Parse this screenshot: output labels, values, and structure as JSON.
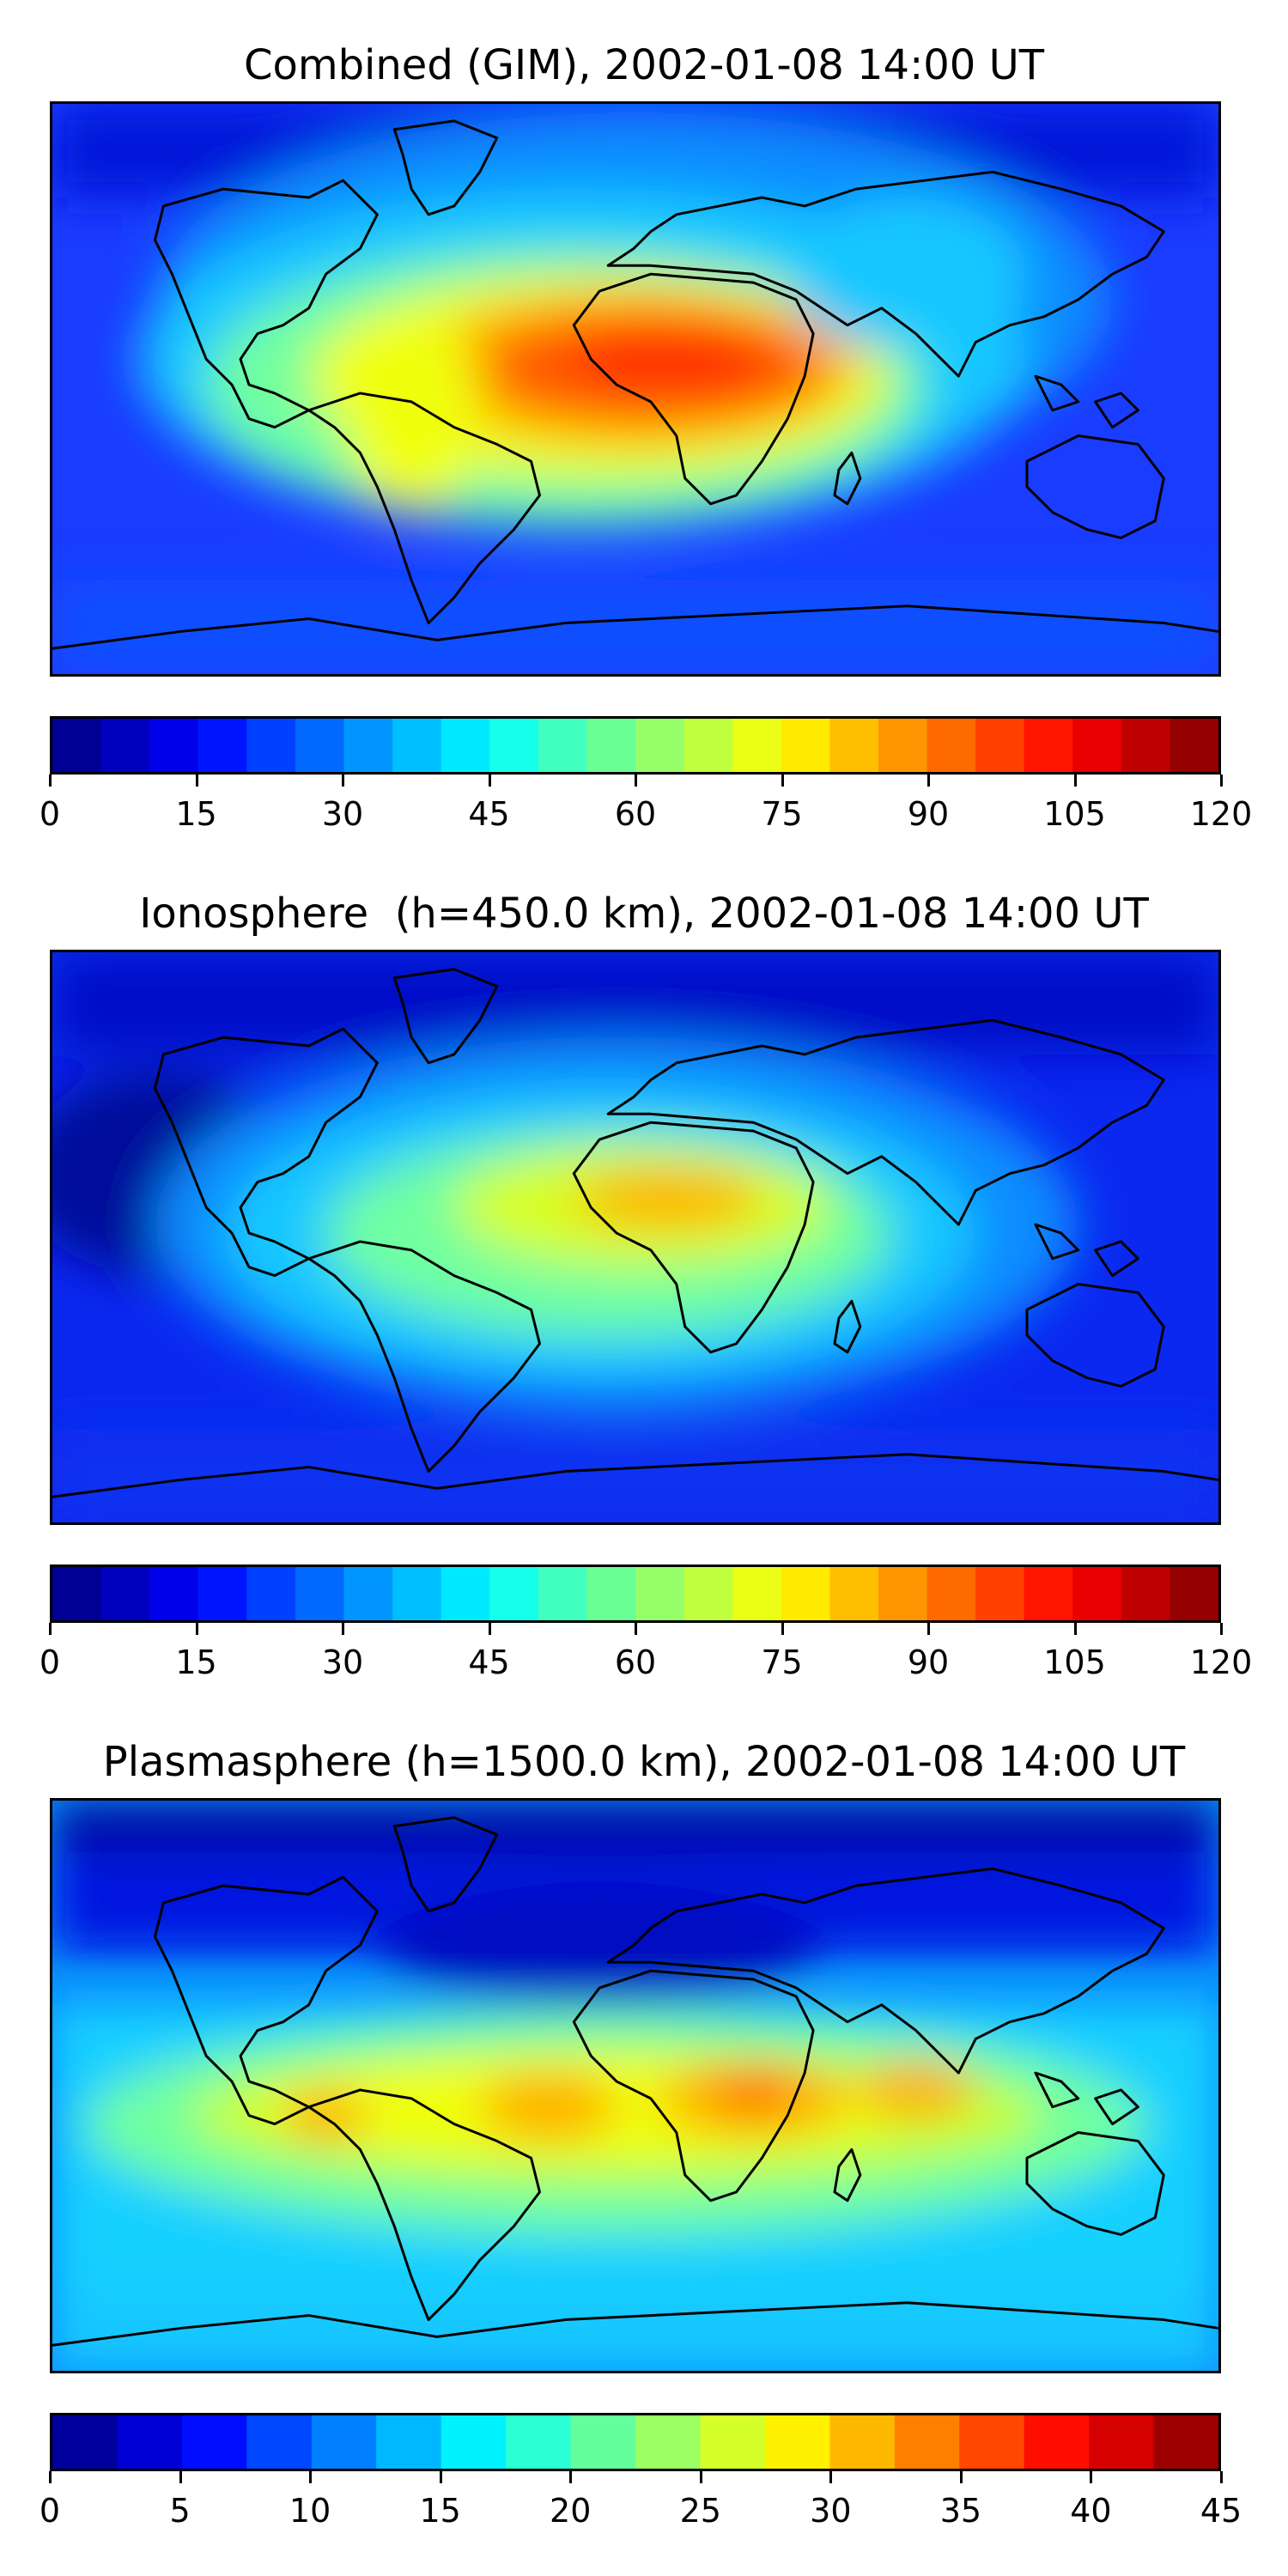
{
  "panels": [
    {
      "title": "Combined (GIM), 2002-01-08 14:00 UT",
      "colorbar_ticks": [
        "0",
        "15",
        "30",
        "45",
        "60",
        "75",
        "90",
        "105",
        "120"
      ],
      "colorbar_range": [
        0,
        120
      ],
      "colorbar_bins": 24
    },
    {
      "title": "Ionosphere  (h=450.0 km), 2002-01-08 14:00 UT",
      "colorbar_ticks": [
        "0",
        "15",
        "30",
        "45",
        "60",
        "75",
        "90",
        "105",
        "120"
      ],
      "colorbar_range": [
        0,
        120
      ],
      "colorbar_bins": 24
    },
    {
      "title": "Plasmasphere (h=1500.0 km), 2002-01-08 14:00 UT",
      "colorbar_ticks": [
        "0",
        "5",
        "10",
        "15",
        "20",
        "25",
        "30",
        "35",
        "40",
        "45"
      ],
      "colorbar_range": [
        0,
        45
      ],
      "colorbar_bins": 18
    }
  ],
  "colormap": "jet"
}
